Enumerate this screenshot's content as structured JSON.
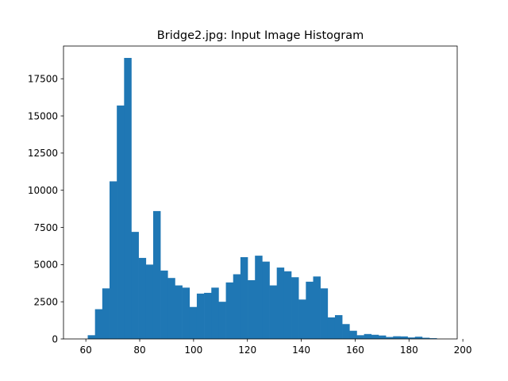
{
  "chart_data": {
    "type": "bar",
    "subtype": "histogram",
    "title": "Bridge2.jpg: Input Image Histogram",
    "xlabel": "",
    "ylabel": "",
    "xlim": [
      51.7,
      197.9
    ],
    "ylim": [
      0,
      19700
    ],
    "xticks": [
      60,
      80,
      100,
      120,
      140,
      160,
      180,
      200
    ],
    "yticks": [
      0,
      2500,
      5000,
      7500,
      10000,
      12500,
      15000,
      17500
    ],
    "bin_start": 58.0,
    "bin_width": 2.7,
    "bar_color": "#1f77b4",
    "grid": false,
    "values": [
      0,
      250,
      2000,
      3400,
      10600,
      15700,
      18900,
      7200,
      5450,
      5000,
      8600,
      4600,
      4100,
      3600,
      3450,
      2150,
      3050,
      3100,
      3450,
      2500,
      3800,
      4350,
      5500,
      3950,
      5600,
      5200,
      3600,
      4800,
      4550,
      4150,
      2650,
      3850,
      4200,
      3400,
      1450,
      1600,
      1000,
      550,
      250,
      330,
      280,
      230,
      130,
      180,
      170,
      100,
      150,
      80,
      50
    ]
  }
}
